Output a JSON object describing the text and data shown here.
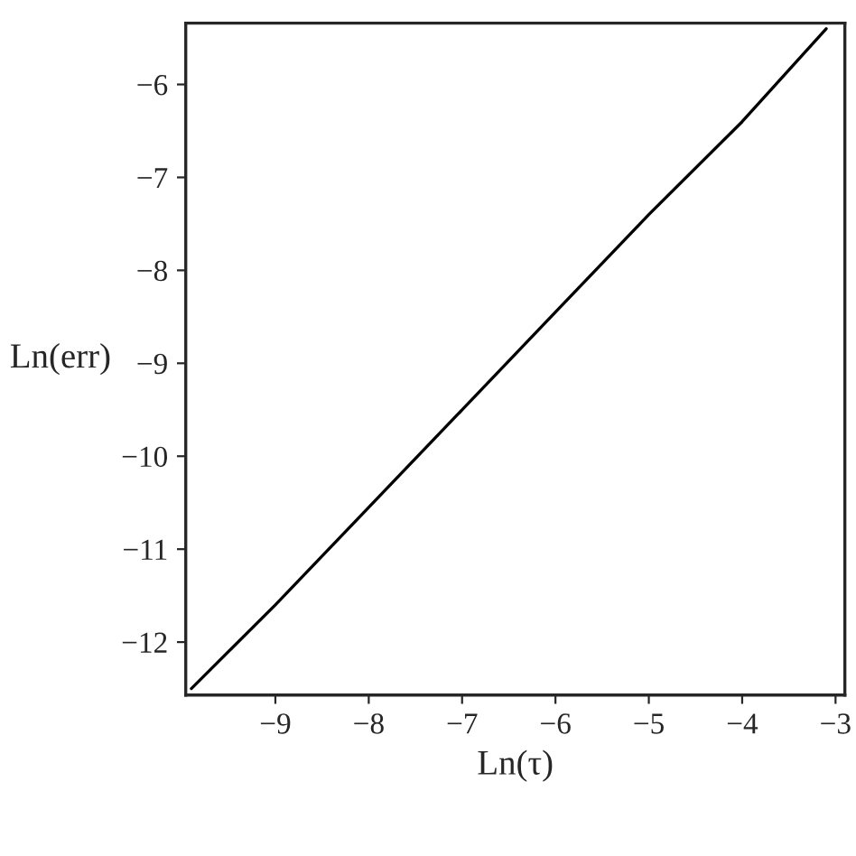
{
  "chart_data": {
    "type": "line",
    "xlabel": "Ln(τ)",
    "ylabel": "Ln(err)",
    "x": [
      -9.9,
      -9,
      -8,
      -7,
      -6,
      -5,
      -4,
      -3.1
    ],
    "series": [
      {
        "color": "#000000",
        "values": [
          -12.5,
          -11.6,
          -10.55,
          -9.5,
          -8.45,
          -7.4,
          -6.4,
          -5.4
        ]
      }
    ],
    "xlim": [
      -9.96,
      -2.9
    ],
    "ylim": [
      -12.57,
      -5.34
    ],
    "xticks": [
      -9,
      -8,
      -7,
      -6,
      -5,
      -4,
      -3
    ],
    "yticks": [
      -12,
      -11,
      -10,
      -9,
      -8,
      -7,
      -6
    ],
    "grid": false,
    "legend": false,
    "marker": "none",
    "line_style": "solid"
  }
}
